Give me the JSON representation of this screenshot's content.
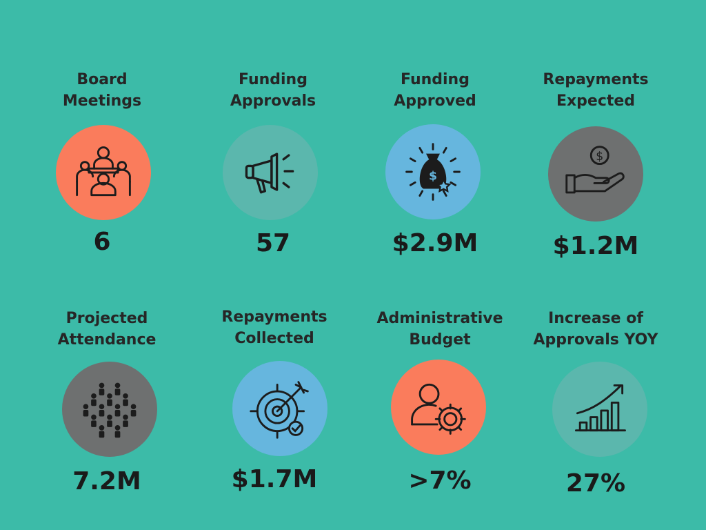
{
  "colors": {
    "background": "#3cbba8",
    "orange": "#fa7c5c",
    "teal_light": "#5bb7ad",
    "blue": "#66b6de",
    "gray": "#6e7070"
  },
  "stats": [
    {
      "label_line1": "Board",
      "label_line2": "Meetings",
      "value": "6",
      "icon": "meeting-people-icon",
      "circle_color": "orange"
    },
    {
      "label_line1": "Funding",
      "label_line2": "Approvals",
      "value": "57",
      "icon": "megaphone-icon",
      "circle_color": "teal_light"
    },
    {
      "label_line1": "Funding",
      "label_line2": "Approved",
      "value": "$2.9M",
      "icon": "money-bag-icon",
      "circle_color": "blue"
    },
    {
      "label_line1": "Repayments",
      "label_line2": "Expected",
      "value": "$1.2M",
      "icon": "hand-coin-icon",
      "circle_color": "gray"
    },
    {
      "label_line1": "Projected",
      "label_line2": "Attendance",
      "value": "7.2M",
      "icon": "crowd-icon",
      "circle_color": "gray"
    },
    {
      "label_line1": "Repayments",
      "label_line2": "Collected",
      "value": "$1.7M",
      "icon": "target-arrow-icon",
      "circle_color": "blue"
    },
    {
      "label_line1": "Administrative",
      "label_line2": "Budget",
      "value": ">7%",
      "icon": "user-gear-icon",
      "circle_color": "orange"
    },
    {
      "label_line1": "Increase of",
      "label_line2": "Approvals YOY",
      "value": "27%",
      "icon": "growth-chart-icon",
      "circle_color": "teal_light"
    }
  ]
}
